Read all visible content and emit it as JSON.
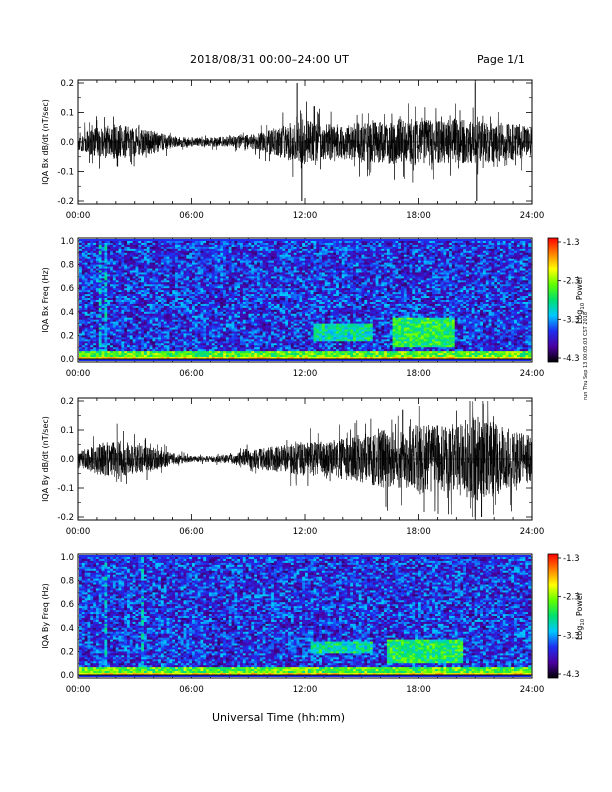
{
  "header": {
    "title": "2018/08/31  00:00–24:00 UT",
    "page": "Page 1/1",
    "xlabel": "Universal Time (hh:mm)",
    "stamp": "run Thu Sep 13 00:05:03 CST 2018"
  },
  "colorbar": {
    "stops": [
      "#000000",
      "#4b00a0",
      "#1e2ef0",
      "#00c8ff",
      "#00e070",
      "#60ff00",
      "#ffff00",
      "#ff8000",
      "#ff0000"
    ],
    "ticks": [
      "-1.3",
      "-2.3",
      "-3.3",
      "-4.3"
    ],
    "label_pre": "Log",
    "label_sub": "10",
    "label_post": " Power"
  },
  "chart_data": [
    {
      "type": "line",
      "id": "bx-dbdt",
      "ylabel": "IQA Bx dB/dt (nT/sec)",
      "ylim": [
        -0.2,
        0.2
      ],
      "yticks": [
        "0.2",
        "0.1",
        "0.0",
        "-0.1",
        "-0.2"
      ],
      "xlim": [
        "00:00",
        "24:00"
      ],
      "xticks": [
        "00:00",
        "06:00",
        "12:00",
        "18:00",
        "24:00"
      ],
      "envelope_hours": [
        0,
        1,
        2,
        3,
        4,
        5,
        6,
        7,
        8,
        9,
        10,
        11,
        12,
        13,
        14,
        15,
        16,
        17,
        18,
        19,
        20,
        21,
        22,
        23,
        24
      ],
      "envelope_amplitude": [
        0.03,
        0.05,
        0.06,
        0.05,
        0.04,
        0.02,
        0.015,
        0.015,
        0.02,
        0.025,
        0.04,
        0.06,
        0.08,
        0.06,
        0.06,
        0.07,
        0.07,
        0.08,
        0.08,
        0.07,
        0.08,
        0.07,
        0.07,
        0.06,
        0.05
      ],
      "spikes": [
        {
          "x": "11:35",
          "y": 0.2
        },
        {
          "x": "11:50",
          "y": -0.2
        },
        {
          "x": "21:00",
          "y": 0.2
        },
        {
          "x": "21:05",
          "y": -0.2
        }
      ]
    },
    {
      "type": "heatmap",
      "id": "bx-freq",
      "ylabel": "IQA Bx Freq (Hz)",
      "ylim": [
        0.0,
        1.0
      ],
      "yticks": [
        "1.0",
        "0.8",
        "0.6",
        "0.4",
        "0.2",
        "0.0"
      ],
      "xlim": [
        "00:00",
        "24:00"
      ],
      "xticks": [
        "00:00",
        "06:00",
        "12:00",
        "18:00",
        "24:00"
      ],
      "zlim": [
        -4.3,
        -1.3
      ],
      "features": [
        {
          "band_hz": [
            0.15,
            0.3
          ],
          "time": [
            "12:30",
            "15:40"
          ],
          "level": -2.9
        },
        {
          "band_hz": [
            0.1,
            0.35
          ],
          "time": [
            "16:40",
            "20:00"
          ],
          "level": -2.7
        },
        {
          "band_hz": [
            0.0,
            0.06
          ],
          "time": [
            "00:00",
            "24:00"
          ],
          "level": -2.5
        }
      ]
    },
    {
      "type": "line",
      "id": "by-dbdt",
      "ylabel": "IQA By dB/dt (nT/sec)",
      "ylim": [
        -0.2,
        0.2
      ],
      "yticks": [
        "0.2",
        "0.1",
        "0.0",
        "-0.1",
        "-0.2"
      ],
      "xlim": [
        "00:00",
        "24:00"
      ],
      "xticks": [
        "00:00",
        "06:00",
        "12:00",
        "18:00",
        "24:00"
      ],
      "envelope_hours": [
        0,
        1,
        2,
        3,
        4,
        5,
        6,
        7,
        8,
        9,
        10,
        11,
        12,
        13,
        14,
        15,
        16,
        17,
        18,
        19,
        20,
        21,
        22,
        23,
        24
      ],
      "envelope_amplitude": [
        0.03,
        0.05,
        0.07,
        0.05,
        0.04,
        0.02,
        0.01,
        0.01,
        0.015,
        0.03,
        0.04,
        0.05,
        0.06,
        0.06,
        0.07,
        0.08,
        0.1,
        0.1,
        0.12,
        0.12,
        0.12,
        0.15,
        0.13,
        0.1,
        0.08
      ],
      "spikes": [
        {
          "x": "21:00",
          "y": -0.2
        },
        {
          "x": "21:20",
          "y": -0.2
        },
        {
          "x": "21:25",
          "y": 0.19
        },
        {
          "x": "17:10",
          "y": 0.17
        }
      ]
    },
    {
      "type": "heatmap",
      "id": "by-freq",
      "ylabel": "IQA By Freq (Hz)",
      "ylim": [
        0.0,
        1.0
      ],
      "yticks": [
        "1.0",
        "0.8",
        "0.6",
        "0.4",
        "0.2",
        "0.0"
      ],
      "xlim": [
        "00:00",
        "24:00"
      ],
      "xticks": [
        "00:00",
        "06:00",
        "12:00",
        "18:00",
        "24:00"
      ],
      "zlim": [
        -4.3,
        -1.3
      ],
      "features": [
        {
          "band_hz": [
            0.18,
            0.28
          ],
          "time": [
            "12:20",
            "15:40"
          ],
          "level": -2.9
        },
        {
          "band_hz": [
            0.1,
            0.3
          ],
          "time": [
            "16:20",
            "20:20"
          ],
          "level": -2.7
        },
        {
          "band_hz": [
            0.0,
            0.06
          ],
          "time": [
            "00:00",
            "24:00"
          ],
          "level": -2.5
        }
      ]
    }
  ]
}
